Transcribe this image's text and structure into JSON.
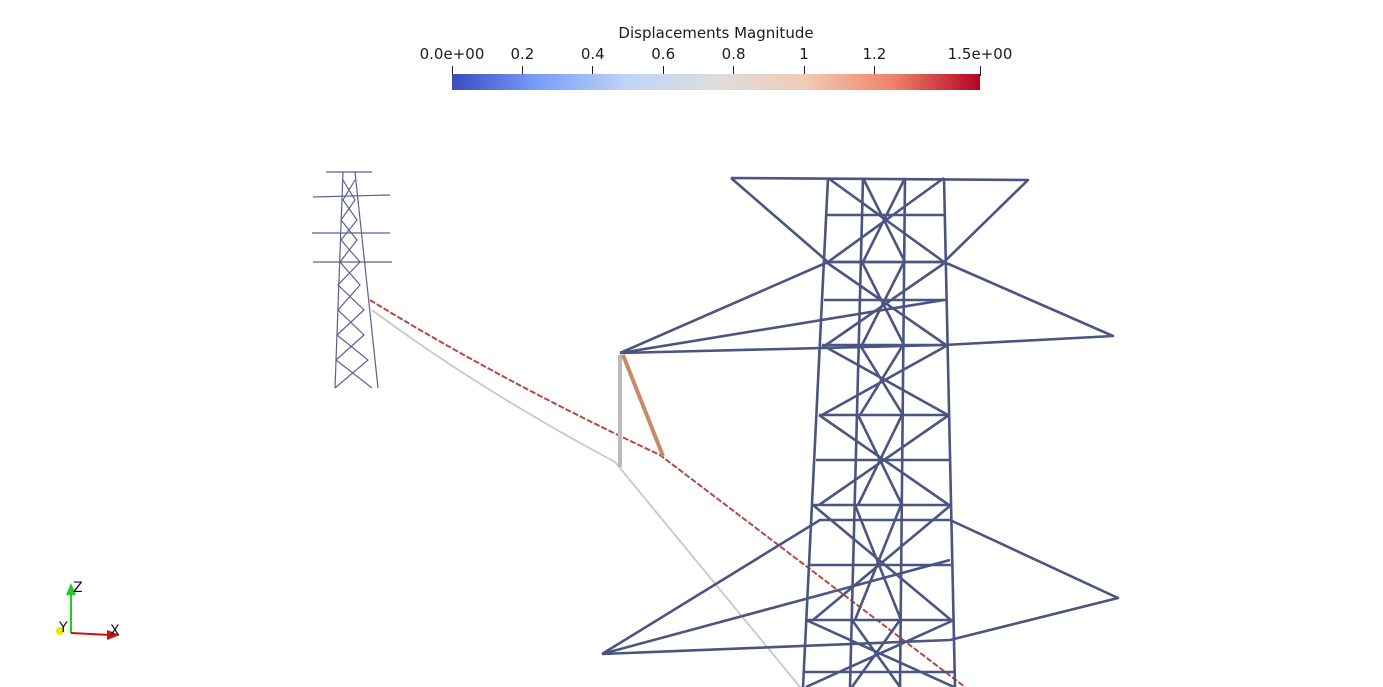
{
  "colorbar": {
    "title": "Displacements Magnitude",
    "ticks": [
      {
        "label": "0.0e+00",
        "value": 0.0
      },
      {
        "label": "0.2",
        "value": 0.2
      },
      {
        "label": "0.4",
        "value": 0.4
      },
      {
        "label": "0.6",
        "value": 0.6
      },
      {
        "label": "0.8",
        "value": 0.8
      },
      {
        "label": "1",
        "value": 1.0
      },
      {
        "label": "1.2",
        "value": 1.2
      },
      {
        "label": "1.5e+00",
        "value": 1.5
      }
    ],
    "range": [
      0.0,
      1.5
    ],
    "colors": [
      "#3b4cc0",
      "#7b9ff9",
      "#c0d4f5",
      "#dddddd",
      "#f2cbb7",
      "#ee8468",
      "#b40426"
    ]
  },
  "axes": {
    "z_label": "Z",
    "y_label": "Y",
    "x_label": "X",
    "z_color": "#22cc22",
    "y_color": "#e8e800",
    "x_color": "#cc1111"
  },
  "scene": {
    "tower_color": "#4a5580",
    "cable_high_color": "#b3152a",
    "cable_low_color": "#c8c8c8"
  }
}
